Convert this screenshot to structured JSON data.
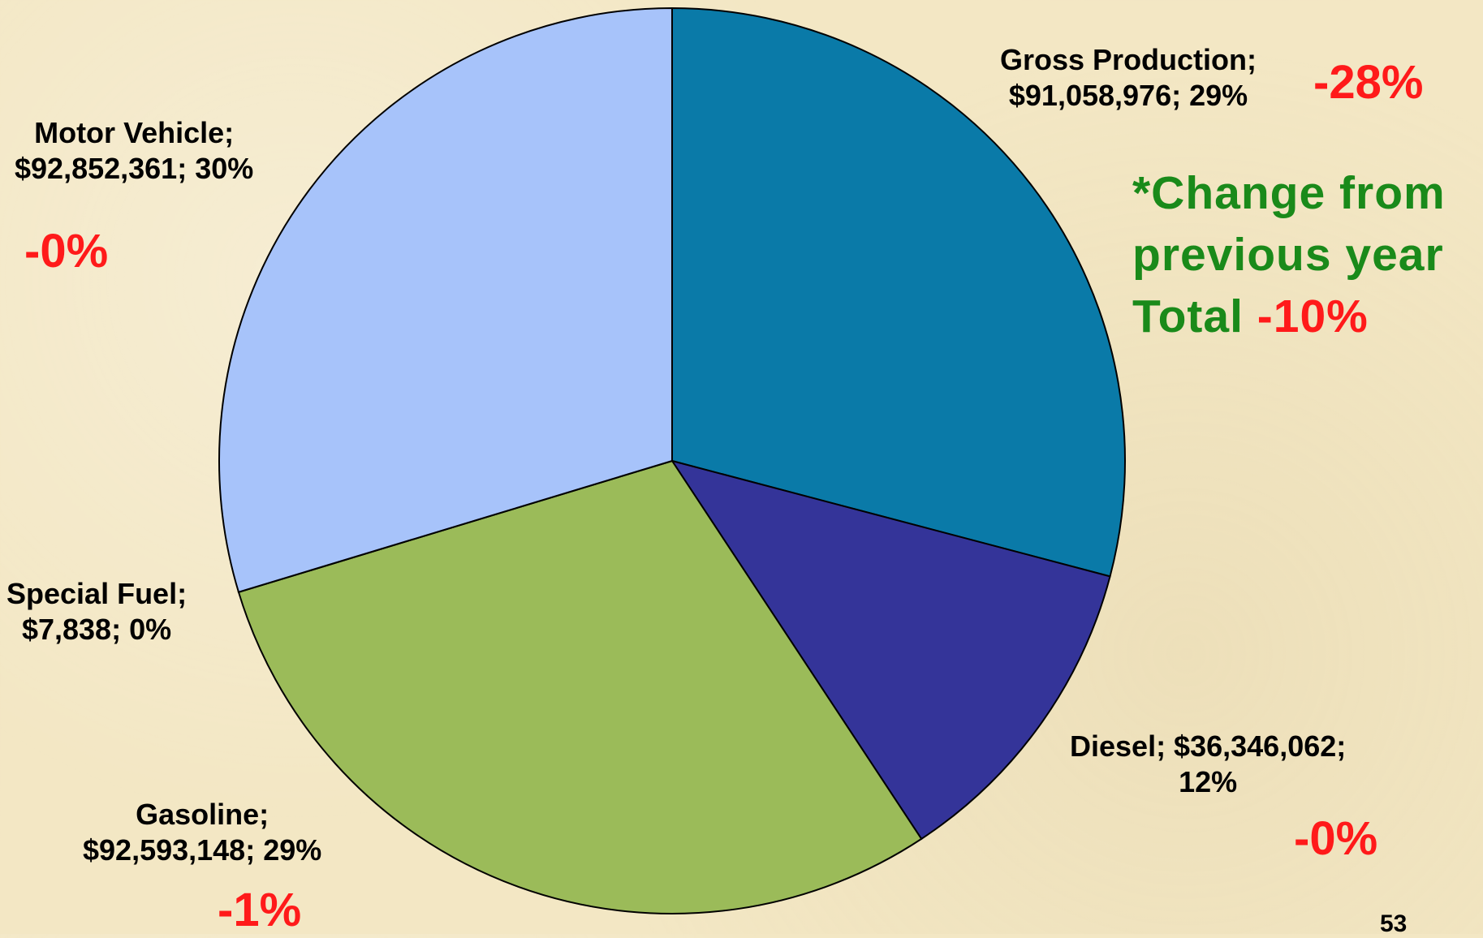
{
  "chart_data": {
    "type": "pie",
    "slices": [
      {
        "label": "Gross Production",
        "value": 91058976,
        "value_text": "$91,058,976",
        "percent": "29%",
        "color": "#0a7aa8",
        "change": "-28%"
      },
      {
        "label": "Diesel",
        "value": 36346062,
        "value_text": "$36,346,062",
        "percent": "12%",
        "color": "#343499",
        "change": "-0%"
      },
      {
        "label": "Gasoline",
        "value": 92593148,
        "value_text": "$92,593,148",
        "percent": "29%",
        "color": "#9bbb59",
        "change": "-1%"
      },
      {
        "label": "Special Fuel",
        "value": 7838,
        "value_text": "$7,838",
        "percent": "0%",
        "color": "#c0504d",
        "change": ""
      },
      {
        "label": "Motor Vehicle",
        "value": 92852361,
        "value_text": "$92,852,361",
        "percent": "30%",
        "color": "#a7c3fa",
        "change": "-0%"
      }
    ],
    "start_angle": "12 o'clock, clockwise",
    "outline_color": "#000000"
  },
  "labels": {
    "gross_production": {
      "line1": "Gross Production;",
      "line2": "$91,058,976; 29%"
    },
    "diesel": {
      "line1": "Diesel; $36,346,062;",
      "line2": "12%"
    },
    "gasoline": {
      "line1": "Gasoline;",
      "line2": "$92,593,148; 29%"
    },
    "special_fuel": {
      "line1": "Special Fuel;",
      "line2": "$7,838; 0%"
    },
    "motor_vehicle": {
      "line1": "Motor Vehicle;",
      "line2": "$92,852,361; 30%"
    }
  },
  "changes": {
    "gross_production": "-28%",
    "diesel": "-0%",
    "gasoline": "-1%",
    "motor_vehicle": "-0%"
  },
  "note": {
    "line1": "*Change from",
    "line2": "previous year",
    "line3_prefix": "Total ",
    "line3_value": "-10%"
  },
  "page_number": "53",
  "colors": {
    "background": "#f3e7c4",
    "negative_change": "#ff1a1a",
    "note_text": "#1a8a1a"
  }
}
